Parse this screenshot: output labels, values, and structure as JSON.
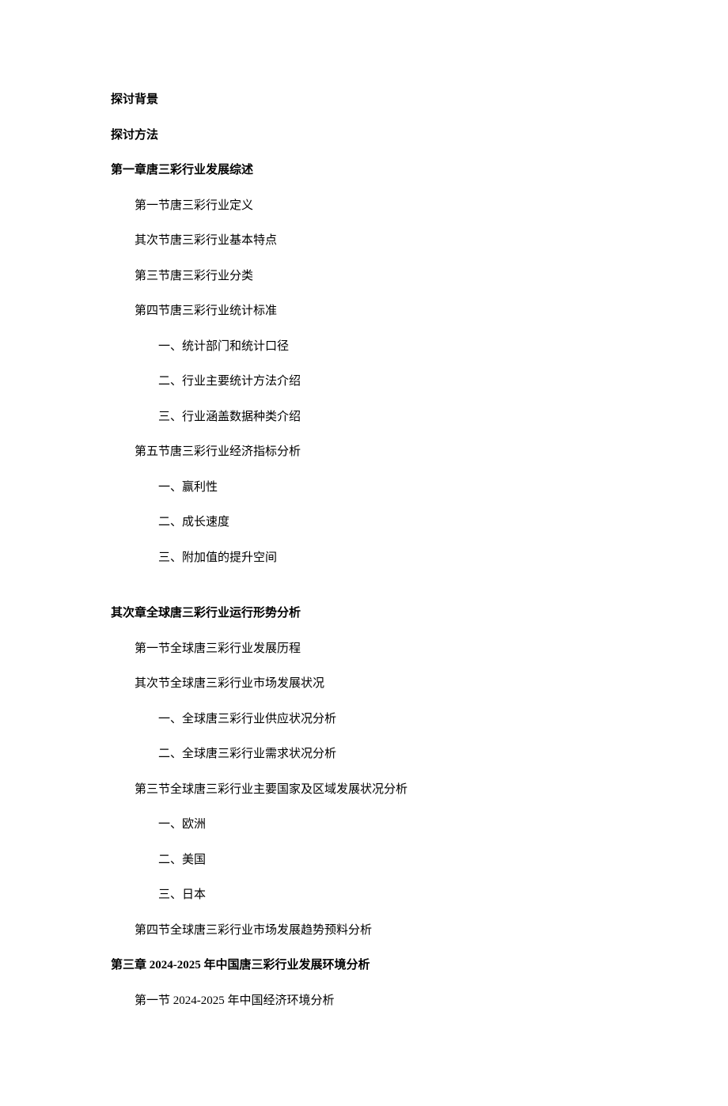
{
  "intro": {
    "background": "探讨背景",
    "method": "探讨方法"
  },
  "chapter1": {
    "title": "第一章唐三彩行业发展综述",
    "s1": "第一节唐三彩行业定义",
    "s2": "其次节唐三彩行业基本特点",
    "s3": "第三节唐三彩行业分类",
    "s4": "第四节唐三彩行业统计标准",
    "s4_items": {
      "i1": "一、统计部门和统计口径",
      "i2": "二、行业主要统计方法介绍",
      "i3": "三、行业涵盖数据种类介绍"
    },
    "s5": "第五节唐三彩行业经济指标分析",
    "s5_items": {
      "i1": "一、赢利性",
      "i2": "二、成长速度",
      "i3": "三、附加值的提升空间"
    }
  },
  "chapter2": {
    "title": "其次章全球唐三彩行业运行形势分析",
    "s1": "第一节全球唐三彩行业发展历程",
    "s2": "其次节全球唐三彩行业市场发展状况",
    "s2_items": {
      "i1": "一、全球唐三彩行业供应状况分析",
      "i2": "二、全球唐三彩行业需求状况分析"
    },
    "s3": "第三节全球唐三彩行业主要国家及区域发展状况分析",
    "s3_items": {
      "i1": "一、欧洲",
      "i2": "二、美国",
      "i3": "三、日本"
    },
    "s4": "第四节全球唐三彩行业市场发展趋势预料分析"
  },
  "chapter3": {
    "title": "第三章 2024-2025 年中国唐三彩行业发展环境分析",
    "s1": "第一节 2024-2025 年中国经济环境分析"
  }
}
